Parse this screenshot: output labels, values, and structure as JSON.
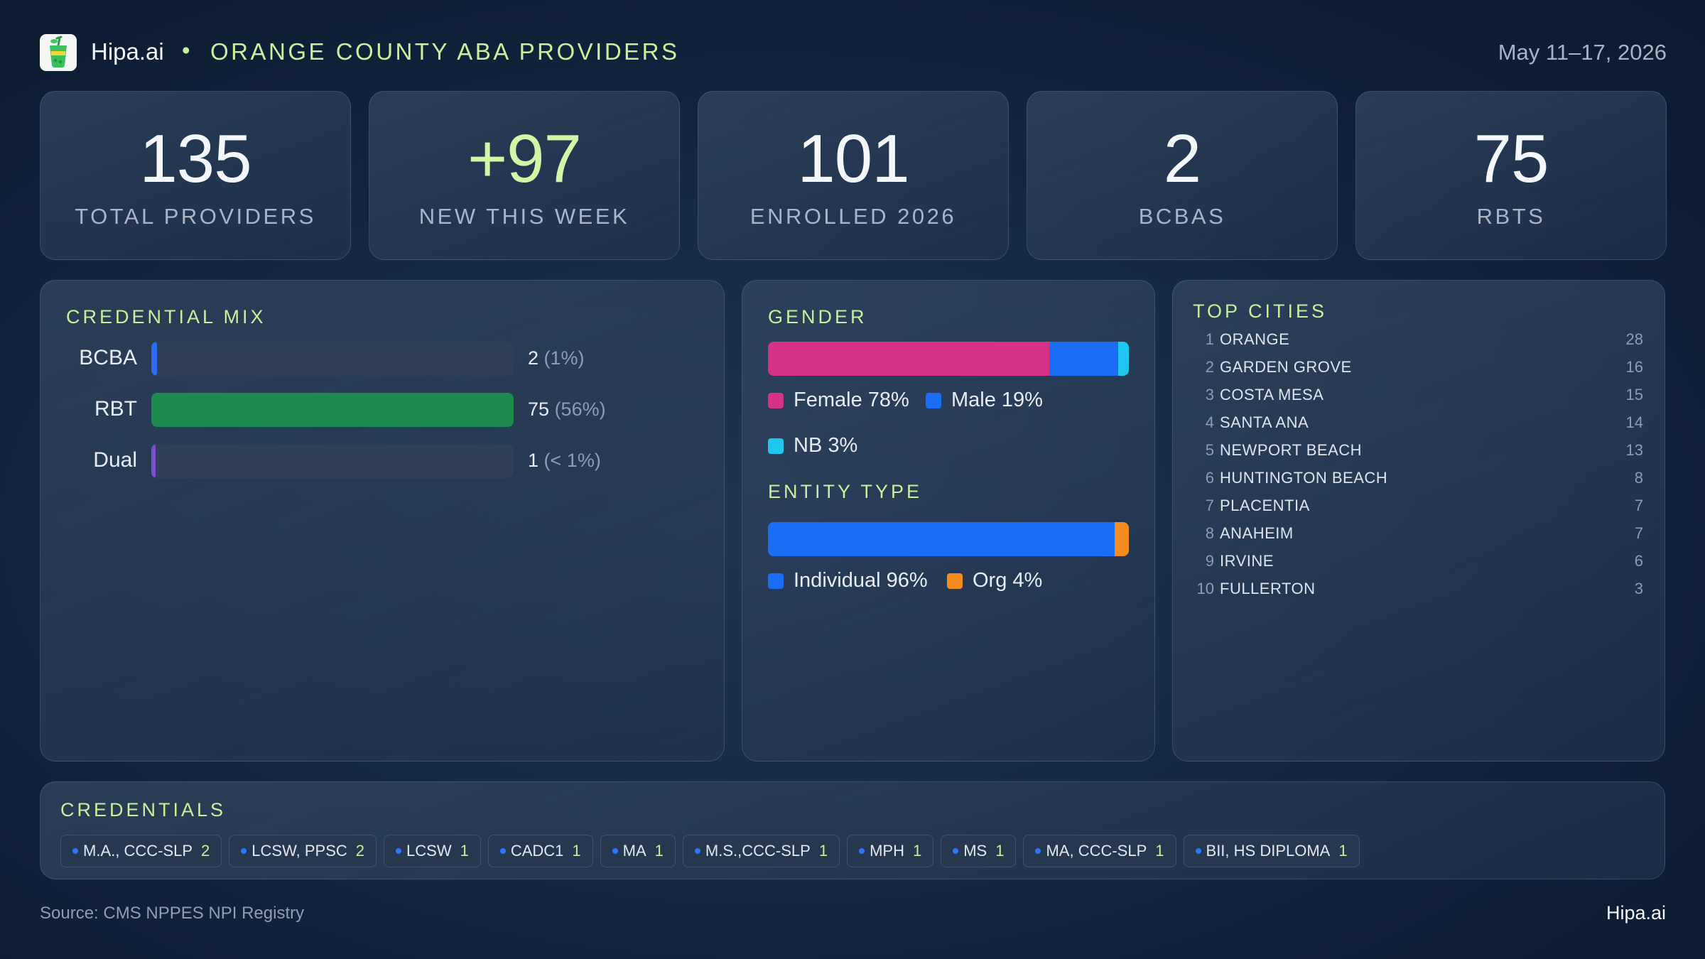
{
  "header": {
    "brand": "Hipa.ai",
    "separator": "•",
    "title": "ORANGE COUNTY ABA PROVIDERS",
    "date_range": "May 11–17, 2026",
    "logo_icon": "juice-cup-icon"
  },
  "stats": [
    {
      "value": "135",
      "label": "TOTAL  PROVIDERS"
    },
    {
      "value": "+97",
      "label": "NEW THIS WEEK"
    },
    {
      "value": "101",
      "label": "ENROLLED 2026"
    },
    {
      "value": "2",
      "label": "BCBAS"
    },
    {
      "value": "75",
      "label": "RBTS"
    }
  ],
  "credential_mix": {
    "title": "CREDENTIAL MIX",
    "rows": [
      {
        "label": "BCBA",
        "count": "2",
        "pct": "(1%)",
        "fraction": 0.015,
        "color": "#2a6df4"
      },
      {
        "label": "RBT",
        "count": "75",
        "pct": "(56%)",
        "fraction": 1.0,
        "color": "#1e8a50"
      },
      {
        "label": "Dual",
        "count": "1",
        "pct": "(< 1%)",
        "fraction": 0.007,
        "color": "#7b4fd6"
      }
    ]
  },
  "gender": {
    "title": "GENDER",
    "segments": [
      {
        "label": "Female 78%",
        "fraction": 0.78,
        "color": "#d63385"
      },
      {
        "label": "Male 19%",
        "fraction": 0.19,
        "color": "#1a6df5"
      },
      {
        "label": "NB 3%",
        "fraction": 0.03,
        "color": "#1ec6f0"
      }
    ]
  },
  "entity_type": {
    "title": "ENTITY TYPE",
    "segments": [
      {
        "label": "Individual 96%",
        "fraction": 0.96,
        "color": "#1a6df5"
      },
      {
        "label": "Org 4%",
        "fraction": 0.04,
        "color": "#f58a1f"
      }
    ]
  },
  "top_cities": {
    "title": "TOP CITIES",
    "rows": [
      {
        "rank": "1",
        "name": "ORANGE",
        "count": "28"
      },
      {
        "rank": "2",
        "name": "GARDEN GROVE",
        "count": "16"
      },
      {
        "rank": "3",
        "name": "COSTA MESA",
        "count": "15"
      },
      {
        "rank": "4",
        "name": "SANTA ANA",
        "count": "14"
      },
      {
        "rank": "5",
        "name": "NEWPORT BEACH",
        "count": "13"
      },
      {
        "rank": "6",
        "name": "HUNTINGTON BEACH",
        "count": "8"
      },
      {
        "rank": "7",
        "name": "PLACENTIA",
        "count": "7"
      },
      {
        "rank": "8",
        "name": "ANAHEIM",
        "count": "7"
      },
      {
        "rank": "9",
        "name": "IRVINE",
        "count": "6"
      },
      {
        "rank": "10",
        "name": "FULLERTON",
        "count": "3"
      }
    ]
  },
  "credentials": {
    "title": "CREDENTIALS",
    "chips": [
      {
        "label": "M.A., CCC-SLP",
        "count": "2"
      },
      {
        "label": "LCSW, PPSC",
        "count": "2"
      },
      {
        "label": "LCSW",
        "count": "1"
      },
      {
        "label": "CADC1",
        "count": "1"
      },
      {
        "label": "MA",
        "count": "1"
      },
      {
        "label": "M.S.,CCC-SLP",
        "count": "1"
      },
      {
        "label": "MPH",
        "count": "1"
      },
      {
        "label": "MS",
        "count": "1"
      },
      {
        "label": "MA, CCC-SLP",
        "count": "1"
      },
      {
        "label": "BII, HS DIPLOMA",
        "count": "1"
      }
    ]
  },
  "footer": {
    "source": "Source: CMS NPPES NPI Registry",
    "brand": "Hipa.ai"
  }
}
